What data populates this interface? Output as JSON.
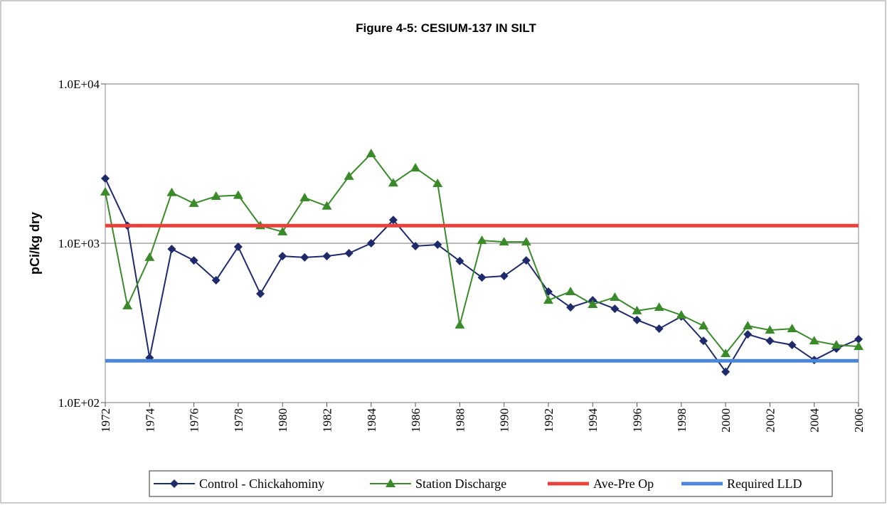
{
  "chart_data": {
    "type": "line",
    "title": "Figure 4-5: CESIUM-137 IN SILT",
    "y_label": "pCi/kg dry",
    "log_y": true,
    "grid": true,
    "x": [
      1972,
      1973,
      1974,
      1975,
      1976,
      1977,
      1978,
      1979,
      1980,
      1981,
      1982,
      1983,
      1984,
      1985,
      1986,
      1987,
      1988,
      1989,
      1990,
      1991,
      1992,
      1993,
      1994,
      1995,
      1996,
      1997,
      1998,
      1999,
      2000,
      2001,
      2002,
      2003,
      2004,
      2005,
      2006
    ],
    "xlim": [
      1972,
      2006
    ],
    "xticks": [
      1972,
      1974,
      1976,
      1978,
      1980,
      1982,
      1984,
      1986,
      1988,
      1990,
      1992,
      1994,
      1996,
      1998,
      2000,
      2002,
      2004,
      2006
    ],
    "ylim": [
      100,
      10000
    ],
    "yticks": [
      {
        "value": 100,
        "label": "1.0E+02"
      },
      {
        "value": 1000,
        "label": "1.0E+03"
      },
      {
        "value": 10000,
        "label": "1.0E+04"
      }
    ],
    "series": [
      {
        "name": "Control - Chickahominy",
        "color": "#1f2a6b",
        "marker": "diamond",
        "values": [
          2550,
          1290,
          191,
          920,
          780,
          586,
          950,
          482,
          830,
          815,
          830,
          866,
          1000,
          1400,
          960,
          980,
          773,
          610,
          623,
          780,
          497,
          396,
          439,
          388,
          330,
          291,
          347,
          244,
          156,
          268,
          244,
          230,
          185,
          218,
          250
        ]
      },
      {
        "name": "Station Discharge",
        "color": "#3a8a2a",
        "marker": "triangle",
        "values": [
          2100,
          405,
          815,
          2080,
          1780,
          1970,
          2000,
          1290,
          1180,
          1930,
          1710,
          2630,
          3650,
          2390,
          2970,
          2370,
          307,
          1040,
          1020,
          1020,
          439,
          497,
          413,
          458,
          377,
          396,
          354,
          303,
          203,
          303,
          285,
          291,
          244,
          230,
          225
        ]
      },
      {
        "name": "Ave-Pre Op",
        "color": "#e8403a",
        "marker": "none",
        "values": [
          1290,
          1290,
          1290,
          1290,
          1290,
          1290,
          1290,
          1290,
          1290,
          1290,
          1290,
          1290,
          1290,
          1290,
          1290,
          1290,
          1290,
          1290,
          1290,
          1290,
          1290,
          1290,
          1290,
          1290,
          1290,
          1290,
          1290,
          1290,
          1290,
          1290,
          1290,
          1290,
          1290,
          1290,
          1290
        ]
      },
      {
        "name": "Required LLD",
        "color": "#4a86d8",
        "marker": "none",
        "values": [
          183,
          183,
          183,
          183,
          183,
          183,
          183,
          183,
          183,
          183,
          183,
          183,
          183,
          183,
          183,
          183,
          183,
          183,
          183,
          183,
          183,
          183,
          183,
          183,
          183,
          183,
          183,
          183,
          183,
          183,
          183,
          183,
          183,
          183,
          183
        ]
      }
    ]
  }
}
